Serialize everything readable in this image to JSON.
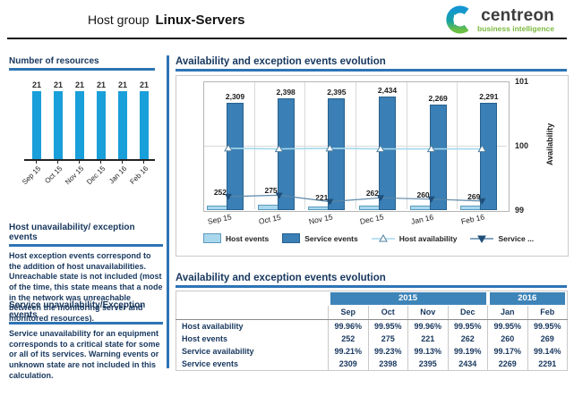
{
  "header": {
    "title_prefix": "Host group",
    "title_name": "Linux-Servers",
    "logo": {
      "brand": "centreon",
      "tagline": "business intelligence"
    }
  },
  "sidebar": {
    "resources": {
      "title": "Number of resources"
    },
    "host_section": {
      "title": "Host unavailability/ exception events",
      "body": "Host exception events correspond to the addition of host unavailabilities. Unreachable state is not included (most of the time, this state means that a node in the network was unreachable between the monitoring server and monitored resources)."
    },
    "service_section": {
      "title": "Service unavailability/Exception events",
      "body": "Service unavailability for an equipment corresponds to a critical state for some or all of its services. Warning events or unknown state are not included in this calculation."
    }
  },
  "main": {
    "chart_title": "Availability and exception events evolution",
    "table_title": "Availability and exception events evolution",
    "table": {
      "year_groups": [
        {
          "label": "2015",
          "span": 4
        },
        {
          "label": "2016",
          "span": 2
        }
      ],
      "months": [
        "Sep",
        "Oct",
        "Nov",
        "Dec",
        "Jan",
        "Feb"
      ],
      "rows": [
        {
          "label": "Host availability",
          "values": [
            "99.96%",
            "99.95%",
            "99.96%",
            "99.95%",
            "99.95%",
            "99.95%"
          ]
        },
        {
          "label": "Host events",
          "values": [
            "252",
            "275",
            "221",
            "262",
            "260",
            "269"
          ]
        },
        {
          "label": "Service availability",
          "values": [
            "99.21%",
            "99.23%",
            "99.13%",
            "99.19%",
            "99.17%",
            "99.14%"
          ]
        },
        {
          "label": "Service events",
          "values": [
            "2309",
            "2398",
            "2395",
            "2434",
            "2269",
            "2291"
          ]
        }
      ]
    }
  },
  "chart_data": [
    {
      "type": "bar",
      "title": "Number of resources",
      "categories": [
        "Sep 15",
        "Oct 15",
        "Nov 15",
        "Dec 15",
        "Jan 16",
        "Feb 16"
      ],
      "values": [
        21,
        21,
        21,
        21,
        21,
        21
      ],
      "bar_color": "#199fd9",
      "grid": false,
      "xlabel": "",
      "ylabel": ""
    },
    {
      "type": "bar",
      "title": "Availability and exception events evolution",
      "categories": [
        "Sep 15",
        "Oct 15",
        "Nov 15",
        "Dec 15",
        "Jan 16",
        "Feb 16"
      ],
      "series": [
        {
          "name": "Host events",
          "kind": "bar",
          "color": "#a9d7ec",
          "border": "#5b9bc0",
          "values": [
            252,
            275,
            221,
            262,
            260,
            269
          ]
        },
        {
          "name": "Service events",
          "kind": "bar",
          "color": "#3a7fb5",
          "border": "#27618e",
          "values": [
            2309,
            2398,
            2395,
            2434,
            2269,
            2291
          ],
          "value_labels": [
            "2,309",
            "2,398",
            "2,395",
            "2,434",
            "2,269",
            "2,291"
          ]
        },
        {
          "name": "Host availability",
          "kind": "line",
          "color": "#a5d8ee",
          "marker": "triangle-up",
          "marker_fill": "#ffffff",
          "marker_border": "#4f7e9e",
          "values": [
            99.96,
            99.95,
            99.96,
            99.95,
            99.95,
            99.95
          ]
        },
        {
          "name": "Service ...",
          "kind": "line",
          "color": "#5b87a8",
          "marker": "triangle-down",
          "marker_fill": "#1f4e79",
          "marker_border": "#1f4e79",
          "values": [
            99.21,
            99.23,
            99.13,
            99.19,
            99.17,
            99.14
          ]
        }
      ],
      "y2": {
        "label": "Availability",
        "ticks": [
          101,
          100,
          99
        ],
        "range": [
          99,
          101
        ]
      },
      "legend_position": "bottom",
      "legend": [
        "Host events",
        "Service events",
        "Host availability",
        "Service ..."
      ],
      "grid": true
    }
  ]
}
